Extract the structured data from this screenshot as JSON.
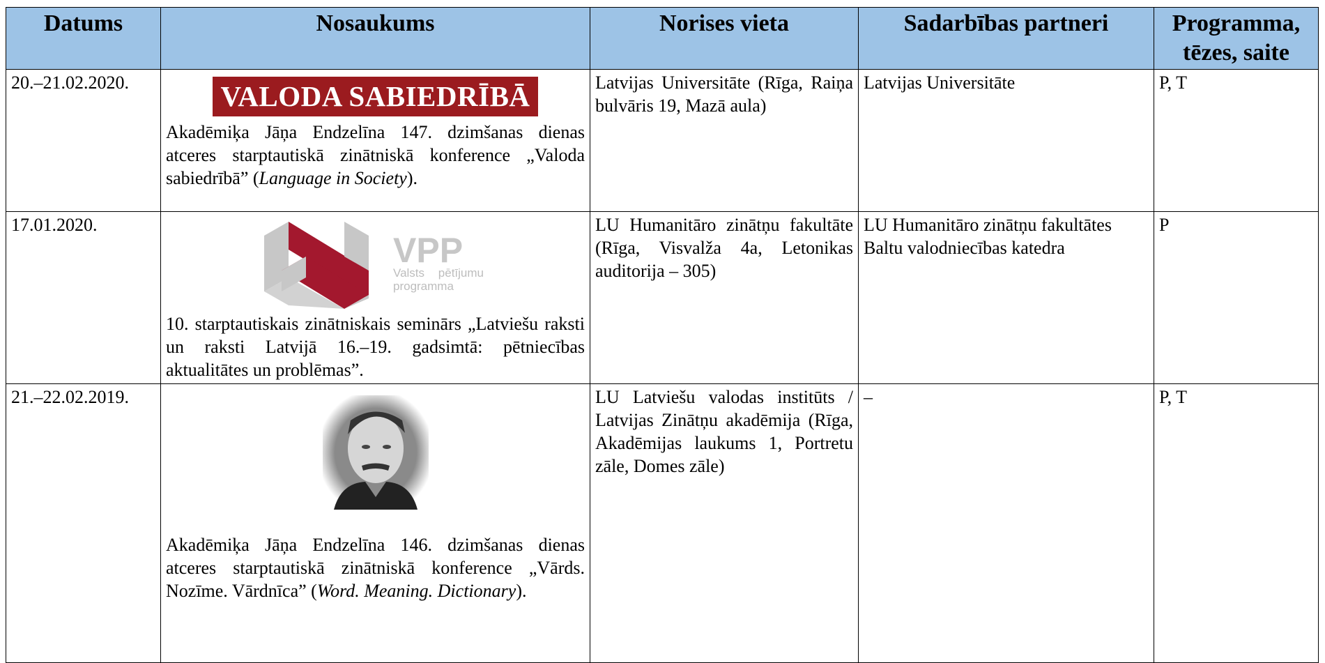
{
  "header": {
    "columns": [
      "Datums",
      "Nosaukums",
      "Norises vieta",
      "Sadarbības partneri",
      "Programma, tēzes, saite"
    ]
  },
  "table": {
    "rows": [
      {
        "date": "20.–21.02.2020.",
        "logo": {
          "text": "VALODA SABIEDRĪBĀ"
        },
        "description": [
          "Akadēmiķa Jāņa Endzelīna 147. dzimšanas dienas atceres starptautiskā zinātniskā konference „Valoda sabiedrībā” (",
          "Language in Society",
          ")."
        ],
        "venue": "Latvijas Universitāte (Rīga, Raiņa bulvāris 19, Mazā aula)",
        "partners": "Latvijas Universitāte",
        "links": "P, T"
      },
      {
        "date": "17.01.2020.",
        "logo": {
          "title": "VPP",
          "subtitle": "Valsts pētījumu programma"
        },
        "description": [
          "10. starptautiskais zinātniskais seminārs „Latviešu raksti un raksti Latvijā 16.–19. gadsimtā: pētniecības aktualitātes un problēmas”."
        ],
        "venue": "LU Humanitāro zinātņu fakultāte (Rīga, Visvalža 4a, Letonikas auditorija – 305)",
        "partners": "LU Humanitāro zinātņu fakultātes Baltu valodniecības katedra",
        "links": "P"
      },
      {
        "date": "21.–22.02.2019.",
        "logo": {},
        "description": [
          "Akadēmiķa Jāņa Endzelīna 146. dzimšanas dienas atceres starptautiskā zinātniskā konference „Vārds. Nozīme. Vārdnīca” (",
          "Word. Meaning. Dictionary",
          ")."
        ],
        "venue": "LU Latviešu valodas institūts / Latvijas Zinātņu akadēmija (Rīga, Akadēmijas laukums 1, Portretu zāle, Domes zāle)",
        "partners": "–",
        "links": "P, T"
      }
    ]
  }
}
